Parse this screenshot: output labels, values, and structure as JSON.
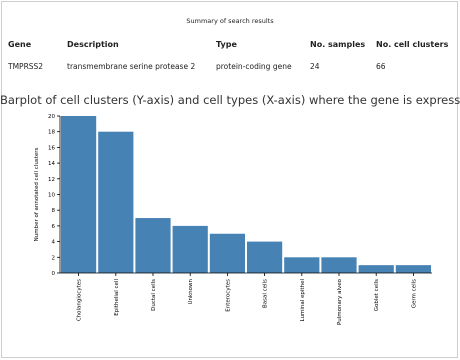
{
  "summary": {
    "caption": "Summary of search results",
    "headers": [
      "Gene",
      "Description",
      "Type",
      "No. samples",
      "No. cell clusters"
    ],
    "row": [
      "TMPRSS2",
      "transmembrane serine protease 2",
      "protein-coding gene",
      "24",
      "66"
    ]
  },
  "chart_data": {
    "type": "bar",
    "title": "Barplot of cell clusters (Y-axis) and cell types (X-axis) where the gene is expressed.",
    "xlabel": "",
    "ylabel": "Number of annotated cell clusters",
    "categories": [
      "Cholangiocytes",
      "Epithelial cell",
      "Ductal cells",
      "Unknown",
      "Enterocytes",
      "Basal cells",
      "Luminal epithel",
      "Pulmonary alveo",
      "Goblet cells",
      "Germ cells"
    ],
    "values": [
      20,
      18,
      7,
      6,
      5,
      4,
      2,
      2,
      1,
      1
    ],
    "ylim": [
      0,
      20
    ],
    "yticks": [
      0,
      2,
      4,
      6,
      8,
      10,
      12,
      14,
      16,
      18,
      20
    ],
    "grid": false,
    "bar_color": "#4682b4"
  }
}
